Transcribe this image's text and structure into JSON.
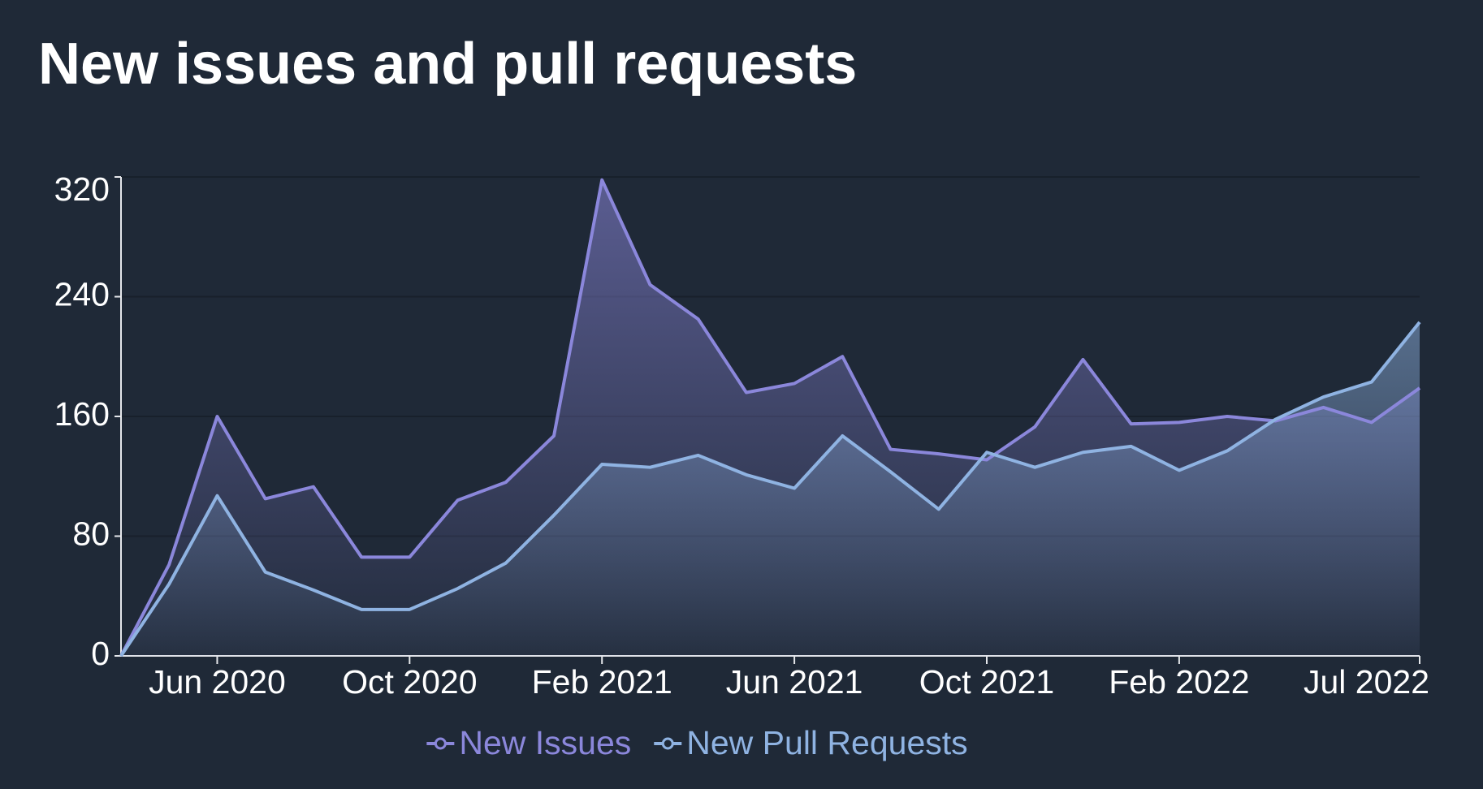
{
  "chart_data": {
    "type": "line",
    "title": "New issues and pull requests",
    "x": [
      "2020-04",
      "2020-05",
      "2020-06",
      "2020-07",
      "2020-08",
      "2020-09",
      "2020-10",
      "2020-11",
      "2020-12",
      "2021-01",
      "2021-02",
      "2021-03",
      "2021-04",
      "2021-05",
      "2021-06",
      "2021-07",
      "2021-08",
      "2021-09",
      "2021-10",
      "2021-11",
      "2021-12",
      "2022-01",
      "2022-02",
      "2022-03",
      "2022-04",
      "2022-05",
      "2022-06",
      "2022-07"
    ],
    "series": [
      {
        "name": "New Issues",
        "color": "#8b87db",
        "values": [
          0,
          61,
          160,
          105,
          113,
          66,
          66,
          104,
          116,
          147,
          318,
          248,
          225,
          176,
          182,
          200,
          138,
          135,
          131,
          153,
          198,
          155,
          156,
          160,
          157,
          166,
          156,
          179
        ]
      },
      {
        "name": "New Pull Requests",
        "color": "#8fb3e2",
        "values": [
          0,
          48,
          107,
          56,
          44,
          31,
          31,
          45,
          62,
          94,
          128,
          126,
          134,
          121,
          112,
          147,
          123,
          98,
          136,
          126,
          136,
          140,
          124,
          137,
          158,
          173,
          183,
          223
        ]
      }
    ],
    "xlim": [
      "2020-04",
      "2022-07"
    ],
    "xticks": [
      {
        "value": "2020-06",
        "label": "Jun 2020"
      },
      {
        "value": "2020-10",
        "label": "Oct 2020"
      },
      {
        "value": "2021-02",
        "label": "Feb 2021"
      },
      {
        "value": "2021-06",
        "label": "Jun 2021"
      },
      {
        "value": "2021-10",
        "label": "Oct 2021"
      },
      {
        "value": "2022-02",
        "label": "Feb 2022"
      },
      {
        "value": "2022-07",
        "label": "Jul 2022"
      }
    ],
    "ylim": [
      0,
      320
    ],
    "yticks": [
      0,
      80,
      160,
      240,
      320
    ],
    "grid": true
  }
}
